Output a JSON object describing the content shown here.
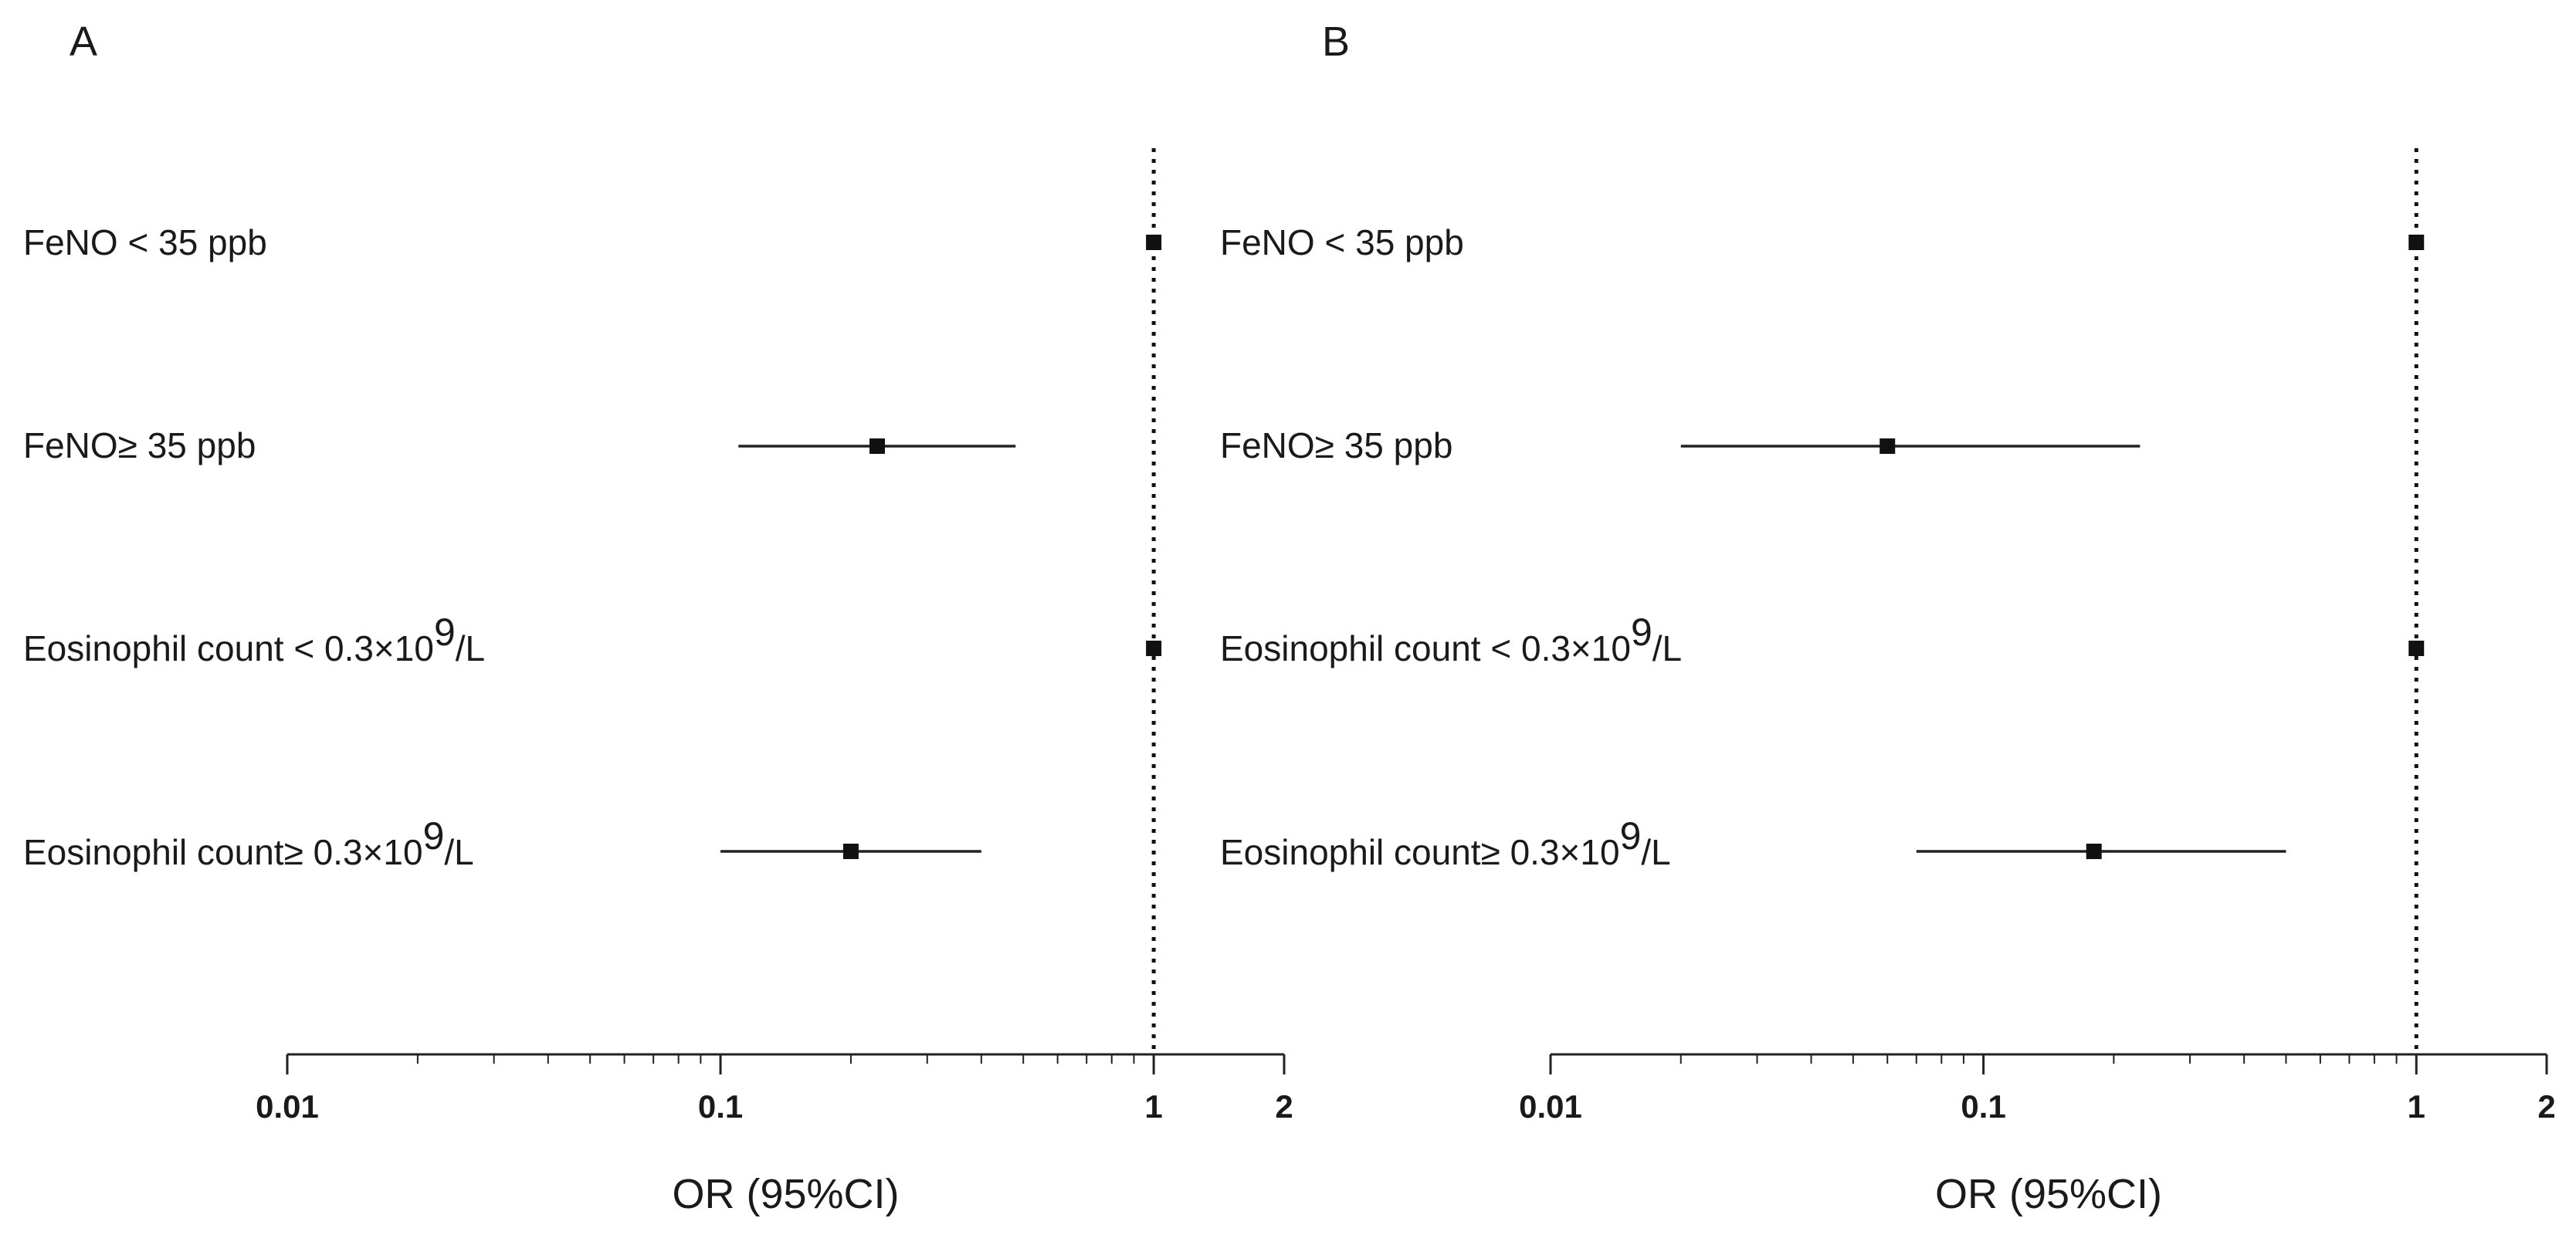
{
  "chart_data": [
    {
      "type": "forest",
      "panel_label": "A",
      "xlabel": "OR (95%CI)",
      "xscale": "log",
      "xlim": [
        0.01,
        2
      ],
      "ticks": [
        {
          "value": 0.01,
          "label": "0.01"
        },
        {
          "value": 0.1,
          "label": "0.1"
        },
        {
          "value": 1,
          "label": "1"
        },
        {
          "value": 2,
          "label": "2"
        }
      ],
      "reference_line": 1,
      "rows": [
        {
          "label_main": "FeNO < 35 ppb",
          "label_sup": "",
          "label_tail": "",
          "or": 1,
          "lo": null,
          "hi": null
        },
        {
          "label_main": "FeNO≥ 35 ppb",
          "label_sup": "",
          "label_tail": "",
          "or": 0.23,
          "lo": 0.11,
          "hi": 0.48
        },
        {
          "label_main": "Eosinophil count < 0.3×10",
          "label_sup": "9",
          "label_tail": "/L",
          "or": 1,
          "lo": null,
          "hi": null
        },
        {
          "label_main": "Eosinophil count≥ 0.3×10",
          "label_sup": "9",
          "label_tail": "/L",
          "or": 0.2,
          "lo": 0.1,
          "hi": 0.4
        }
      ]
    },
    {
      "type": "forest",
      "panel_label": "B",
      "xlabel": "OR (95%CI)",
      "xscale": "log",
      "xlim": [
        0.01,
        2
      ],
      "ticks": [
        {
          "value": 0.01,
          "label": "0.01"
        },
        {
          "value": 0.1,
          "label": "0.1"
        },
        {
          "value": 1,
          "label": "1"
        },
        {
          "value": 2,
          "label": "2"
        }
      ],
      "reference_line": 1,
      "rows": [
        {
          "label_main": "FeNO < 35 ppb",
          "label_sup": "",
          "label_tail": "",
          "or": 1,
          "lo": null,
          "hi": null
        },
        {
          "label_main": "FeNO≥ 35 ppb",
          "label_sup": "",
          "label_tail": "",
          "or": 0.06,
          "lo": 0.02,
          "hi": 0.23
        },
        {
          "label_main": "Eosinophil count < 0.3×10",
          "label_sup": "9",
          "label_tail": "/L",
          "or": 1,
          "lo": null,
          "hi": null
        },
        {
          "label_main": "Eosinophil count≥ 0.3×10",
          "label_sup": "9",
          "label_tail": "/L",
          "or": 0.18,
          "lo": 0.07,
          "hi": 0.5
        }
      ]
    }
  ]
}
